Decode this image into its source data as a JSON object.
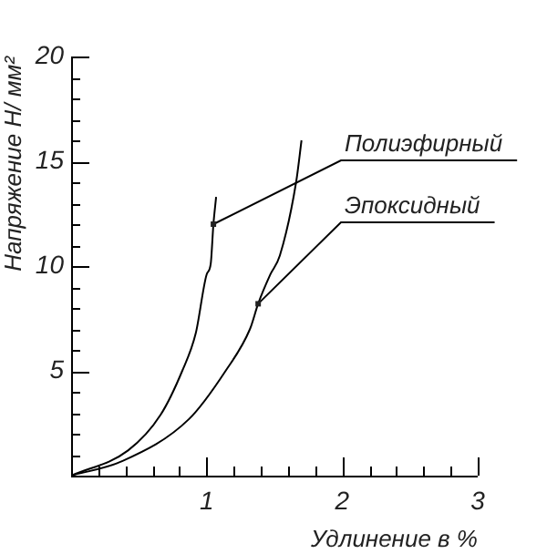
{
  "chart_data": {
    "type": "line",
    "xlabel": "Удлинение в %",
    "ylabel": "Напряжение Н/ мм²",
    "xlim": [
      0,
      3
    ],
    "ylim": [
      0,
      20
    ],
    "xticks": [
      {
        "value": 0,
        "label": null
      },
      {
        "value": 0.2,
        "label": null
      },
      {
        "value": 0.4,
        "label": null
      },
      {
        "value": 0.6,
        "label": null
      },
      {
        "value": 0.8,
        "label": null
      },
      1,
      {
        "value": 1.2,
        "label": null
      },
      {
        "value": 1.4,
        "label": null
      },
      {
        "value": 1.6,
        "label": null
      },
      {
        "value": 1.8,
        "label": null
      },
      2,
      {
        "value": 2.2,
        "label": null
      },
      {
        "value": 2.4,
        "label": null
      },
      {
        "value": 2.6,
        "label": null
      },
      {
        "value": 2.8,
        "label": null
      },
      3
    ],
    "yticks": [
      {
        "value": 1,
        "label": null
      },
      {
        "value": 2,
        "label": null
      },
      {
        "value": 3,
        "label": null
      },
      {
        "value": 4,
        "label": null
      },
      5,
      {
        "value": 6,
        "label": null
      },
      {
        "value": 7,
        "label": null
      },
      {
        "value": 8,
        "label": null
      },
      {
        "value": 9,
        "label": null
      },
      10,
      {
        "value": 11,
        "label": null
      },
      {
        "value": 12,
        "label": null
      },
      {
        "value": 13,
        "label": null
      },
      {
        "value": 14,
        "label": null
      },
      15,
      {
        "value": 16,
        "label": null
      },
      {
        "value": 17,
        "label": null
      },
      {
        "value": 18,
        "label": null
      },
      {
        "value": 19,
        "label": null
      },
      20
    ],
    "grid": false,
    "legend": false,
    "marker": "none",
    "line_style": "solid",
    "series": [
      {
        "color": "#000000",
        "x": [
          0,
          0.42,
          0.66,
          0.82,
          0.92,
          1.0,
          1.03,
          1.05,
          1.07
        ],
        "values": [
          0,
          1.2,
          2.9,
          5.0,
          6.8,
          9.6,
          10.1,
          12,
          13.3
        ]
      },
      {
        "color": "#000000",
        "x": [
          0,
          0.38,
          0.87,
          1.14,
          1.32,
          1.38,
          1.47,
          1.54,
          1.66,
          1.7
        ],
        "values": [
          0,
          0.7,
          2.7,
          5.0,
          7.0,
          8.2,
          9.6,
          10.5,
          14,
          16
        ]
      }
    ],
    "annotations": [
      {
        "text": "Полиэфирный",
        "x": 1.05,
        "y": 12
      },
      {
        "text": "Эпоксидный",
        "x": 1.38,
        "y": 8.2
      }
    ]
  }
}
